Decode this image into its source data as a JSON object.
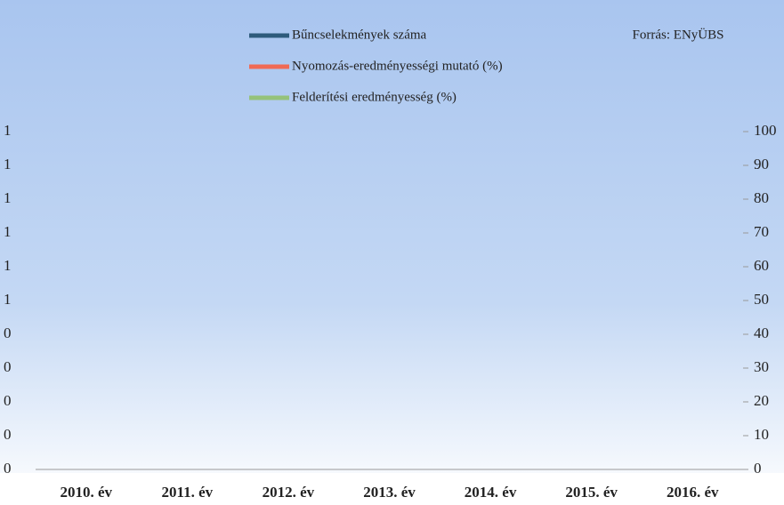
{
  "chart_data": {
    "type": "line",
    "source": "Forrás: ENyÜBS",
    "categories": [
      "2010. év",
      "2011. év",
      "2012. év",
      "2013. év",
      "2014. év",
      "2015. év",
      "2016. év"
    ],
    "series": [
      {
        "name": "Bűncselekmények száma",
        "color": "#2e5b7c"
      },
      {
        "name": "Nyomozás-eredményességi mutató (%)",
        "color": "#f06a55",
        "axis": "y2"
      },
      {
        "name": "Felderítési eredményesség (%)",
        "color": "#95c27a",
        "axis": "y2"
      }
    ],
    "ytick_labels": [
      "1",
      "1",
      "1",
      "1",
      "1",
      "1",
      "0",
      "0",
      "0",
      "0",
      "0"
    ],
    "y2lim": [
      0,
      100
    ],
    "y2ticks": [
      0,
      10,
      20,
      30,
      40,
      50,
      60,
      70,
      80,
      90,
      100
    ]
  }
}
